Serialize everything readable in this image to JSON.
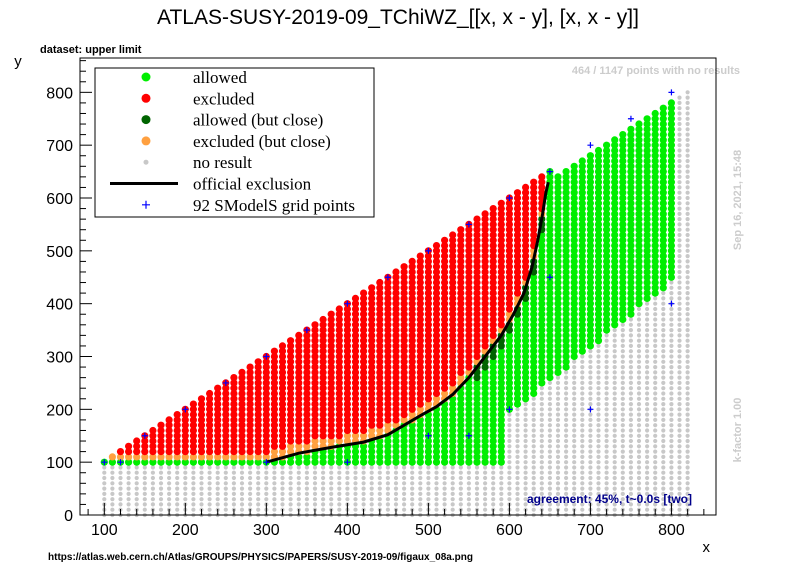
{
  "chart_data": {
    "type": "scatter",
    "title": "ATLAS-SUSY-2019-09_TChiWZ_[[x, x - y], [x, x - y]]",
    "xlabel": "x",
    "ylabel": "y",
    "xlim": [
      70,
      855
    ],
    "ylim": [
      0,
      865
    ],
    "xticks": [
      100,
      200,
      300,
      400,
      500,
      600,
      700,
      800
    ],
    "yticks": [
      0,
      100,
      200,
      300,
      400,
      500,
      600,
      700,
      800
    ],
    "grid": false,
    "legend_position": "top-left",
    "dataset_label": "dataset: upper limit",
    "no_results_note": "464 / 1147 points with no results",
    "timestamp": "Sep 16, 2021, 15:48",
    "kfactor": "k-factor 1.00",
    "agreement": "agreement: 45%, t~0.0s [two]",
    "source_url": "https://atlas.web.cern.ch/Atlas/GROUPS/PHYSICS/PAPERS/SUSY-2019-09/figaux_08a.png",
    "legend": [
      {
        "label": "allowed",
        "color": "#00ee00",
        "marker": "dot"
      },
      {
        "label": "excluded",
        "color": "#ff0000",
        "marker": "dot"
      },
      {
        "label": "allowed (but close)",
        "color": "#006400",
        "marker": "dot"
      },
      {
        "label": "excluded (but close)",
        "color": "#ffa040",
        "marker": "dot"
      },
      {
        "label": "no result",
        "color": "#c8c8c8",
        "marker": "small-dot"
      },
      {
        "label": "official exclusion",
        "color": "#000000",
        "marker": "line"
      },
      {
        "label": "92 SModelS grid points",
        "color": "#0000ff",
        "marker": "plus"
      }
    ],
    "official_exclusion": [
      [
        300,
        100
      ],
      [
        340,
        117
      ],
      [
        380,
        128
      ],
      [
        420,
        138
      ],
      [
        450,
        152
      ],
      [
        470,
        170
      ],
      [
        490,
        188
      ],
      [
        510,
        205
      ],
      [
        530,
        228
      ],
      [
        550,
        260
      ],
      [
        570,
        300
      ],
      [
        590,
        340
      ],
      [
        605,
        380
      ],
      [
        618,
        420
      ],
      [
        628,
        470
      ],
      [
        635,
        520
      ],
      [
        641,
        570
      ],
      [
        645,
        610
      ],
      [
        648,
        630
      ]
    ],
    "grid_point_sample": [
      [
        100,
        100
      ],
      [
        120,
        100
      ],
      [
        150,
        150
      ],
      [
        200,
        200
      ],
      [
        250,
        250
      ],
      [
        300,
        300
      ],
      [
        300,
        100
      ],
      [
        350,
        350
      ],
      [
        400,
        400
      ],
      [
        450,
        450
      ],
      [
        500,
        500
      ],
      [
        550,
        550
      ],
      [
        600,
        600
      ],
      [
        650,
        650
      ],
      [
        700,
        700
      ],
      [
        750,
        750
      ],
      [
        800,
        800
      ],
      [
        800,
        400
      ],
      [
        700,
        200
      ],
      [
        650,
        450
      ],
      [
        600,
        200
      ],
      [
        550,
        150
      ],
      [
        500,
        150
      ],
      [
        400,
        100
      ]
    ],
    "colors": {
      "allowed": "#00ee00",
      "excluded": "#ff0000",
      "allowed_close": "#006400",
      "excluded_close": "#ffa040",
      "no_result": "#c8c8c8",
      "grid_points": "#0000ff"
    }
  }
}
